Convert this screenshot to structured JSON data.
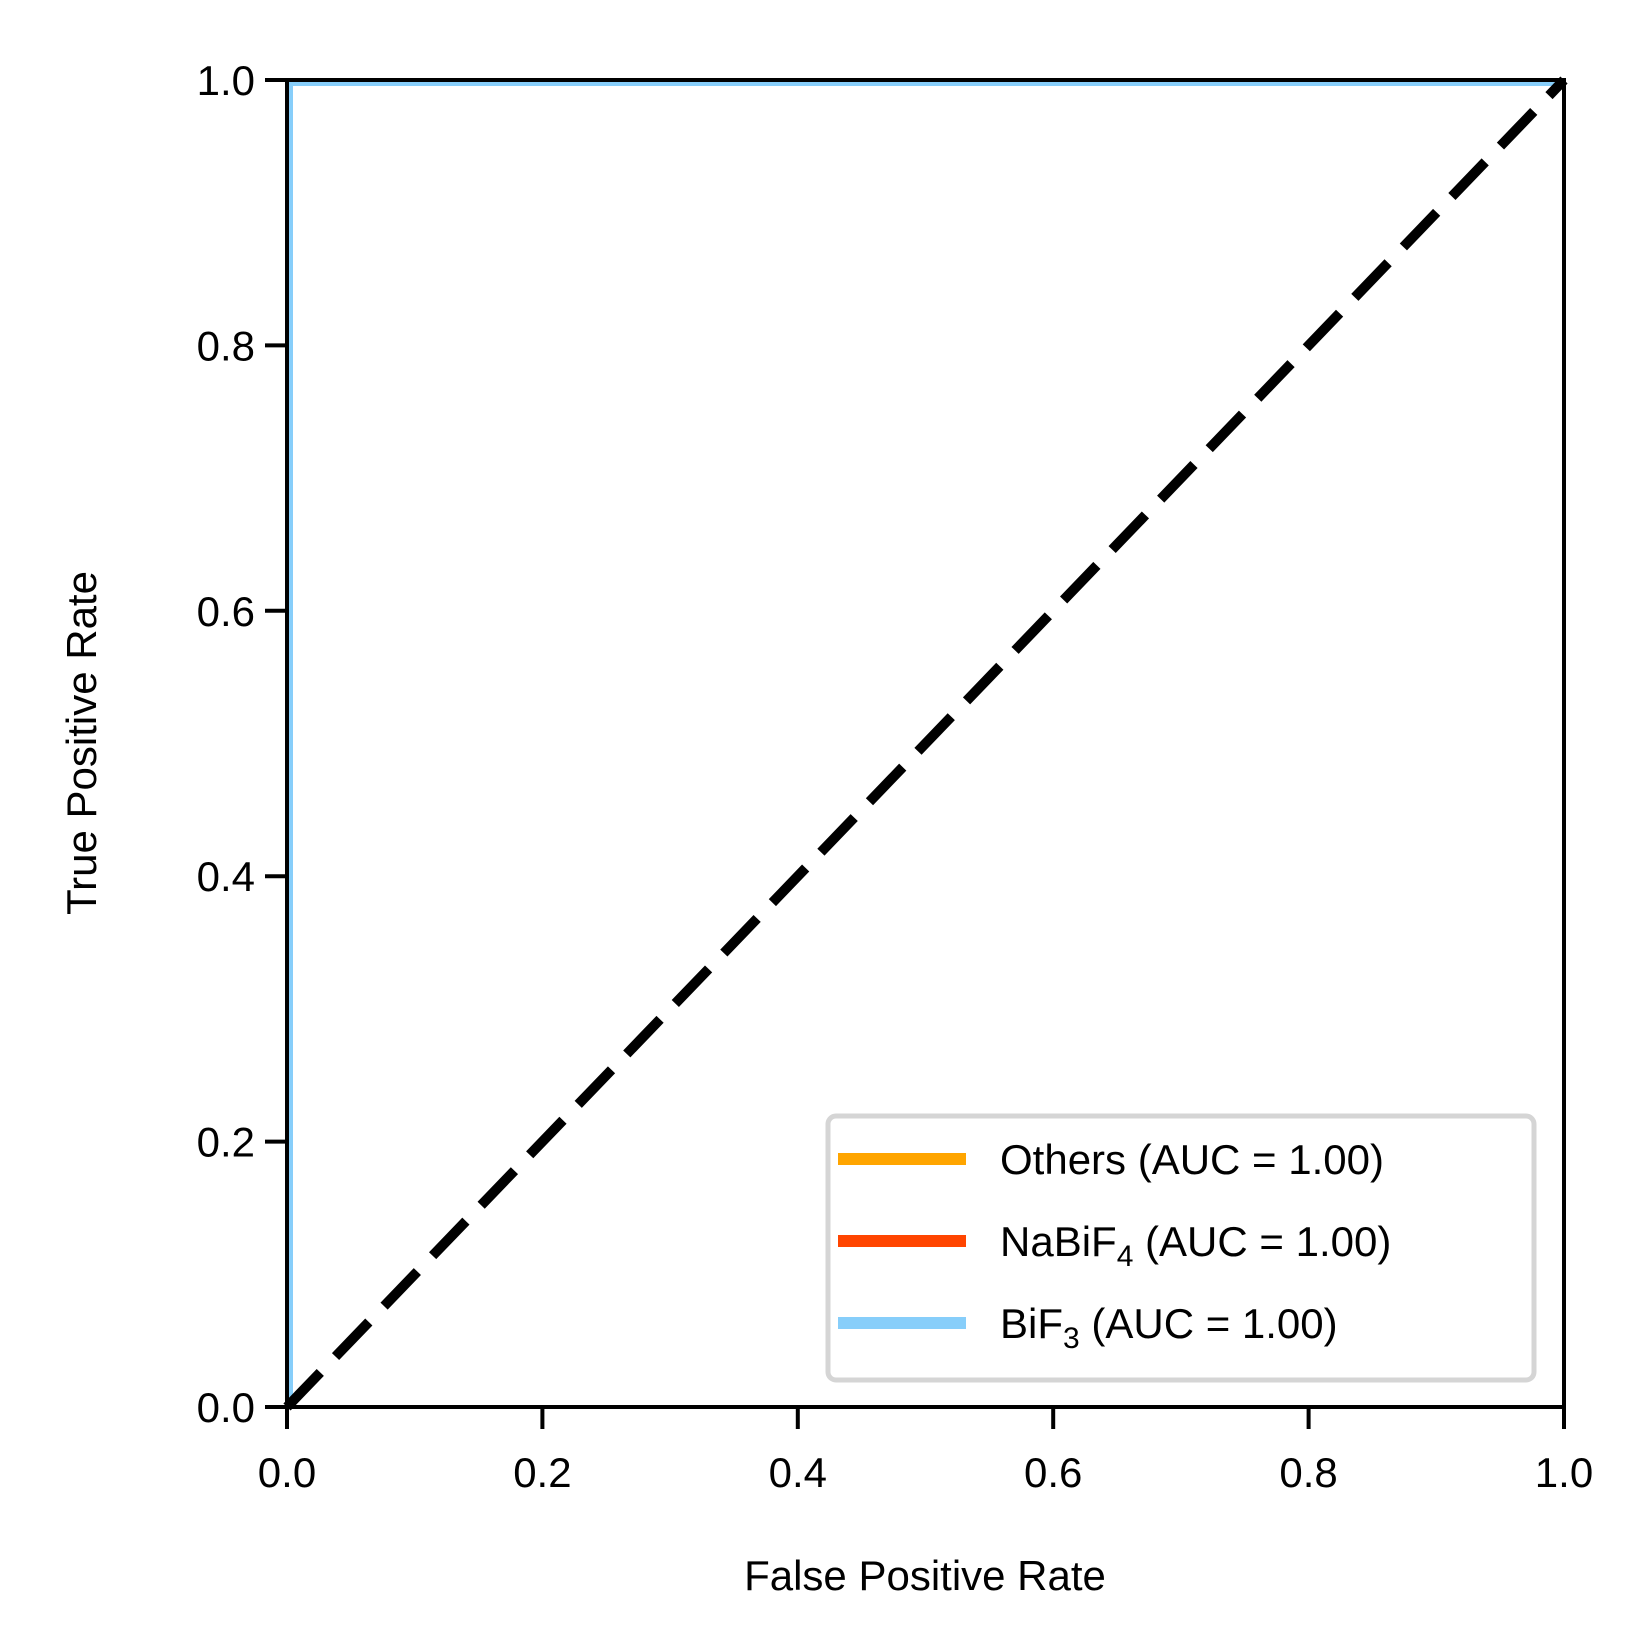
{
  "chart_data": {
    "type": "line",
    "title": "",
    "xlabel": "False Positive Rate",
    "ylabel": "True Positive Rate",
    "xlim": [
      0.0,
      1.0
    ],
    "ylim": [
      0.0,
      1.0
    ],
    "xticks": [
      "0.0",
      "0.2",
      "0.4",
      "0.6",
      "0.8",
      "1.0"
    ],
    "yticks": [
      "0.0",
      "0.2",
      "0.4",
      "0.6",
      "0.8",
      "1.0"
    ],
    "grid": false,
    "legend_position": "lower-right",
    "series": [
      {
        "name": "Others",
        "name_sub": "",
        "auc_label": " (AUC = 1.00)",
        "color": "#FFA500",
        "x": [
          0.0,
          0.0,
          1.0
        ],
        "y": [
          0.0,
          1.0,
          1.0
        ]
      },
      {
        "name": "NaBiF",
        "name_sub": "4",
        "auc_label": " (AUC = 1.00)",
        "color": "#FF4500",
        "x": [
          0.0,
          0.0,
          1.0
        ],
        "y": [
          0.0,
          1.0,
          1.0
        ]
      },
      {
        "name": "BiF",
        "name_sub": "3",
        "auc_label": " (AUC = 1.00)",
        "color": "#87CEFA",
        "x": [
          0.0,
          0.0,
          1.0
        ],
        "y": [
          0.0,
          1.0,
          1.0
        ]
      }
    ],
    "reference_line": {
      "x": [
        0.0,
        1.0
      ],
      "y": [
        0.0,
        1.0
      ],
      "color": "#000000",
      "style": "dashed"
    }
  }
}
